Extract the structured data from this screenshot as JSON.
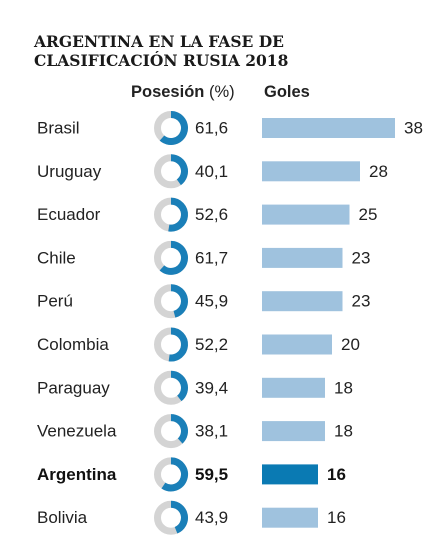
{
  "title": {
    "line1": "ARGENTINA EN LA FASE DE",
    "line2": "CLASIFICACIÓN RUSIA 2018"
  },
  "headers": {
    "posesion": "Posesión",
    "posesion_unit": "(%)",
    "goles": "Goles"
  },
  "colors": {
    "donut_fill": "#1a7fb8",
    "donut_track": "#d4d4d4",
    "bar": "#9fc2de",
    "bar_highlight": "#0a7ab3",
    "text": "#222222"
  },
  "chart_data": {
    "type": "bar",
    "categories": [
      "Brasil",
      "Uruguay",
      "Ecuador",
      "Chile",
      "Perú",
      "Colombia",
      "Paraguay",
      "Venezuela",
      "Argentina",
      "Bolivia"
    ],
    "series": [
      {
        "name": "Posesión (%)",
        "values": [
          61.6,
          40.1,
          52.6,
          61.7,
          45.9,
          52.2,
          39.4,
          38.1,
          59.5,
          43.9
        ]
      },
      {
        "name": "Goles",
        "values": [
          38,
          28,
          25,
          23,
          23,
          20,
          18,
          18,
          16,
          16
        ]
      }
    ],
    "posesion_labels": [
      "61,6",
      "40,1",
      "52,6",
      "61,7",
      "45,9",
      "52,2",
      "39,4",
      "38,1",
      "59,5",
      "43,9"
    ],
    "highlight": "Argentina"
  }
}
